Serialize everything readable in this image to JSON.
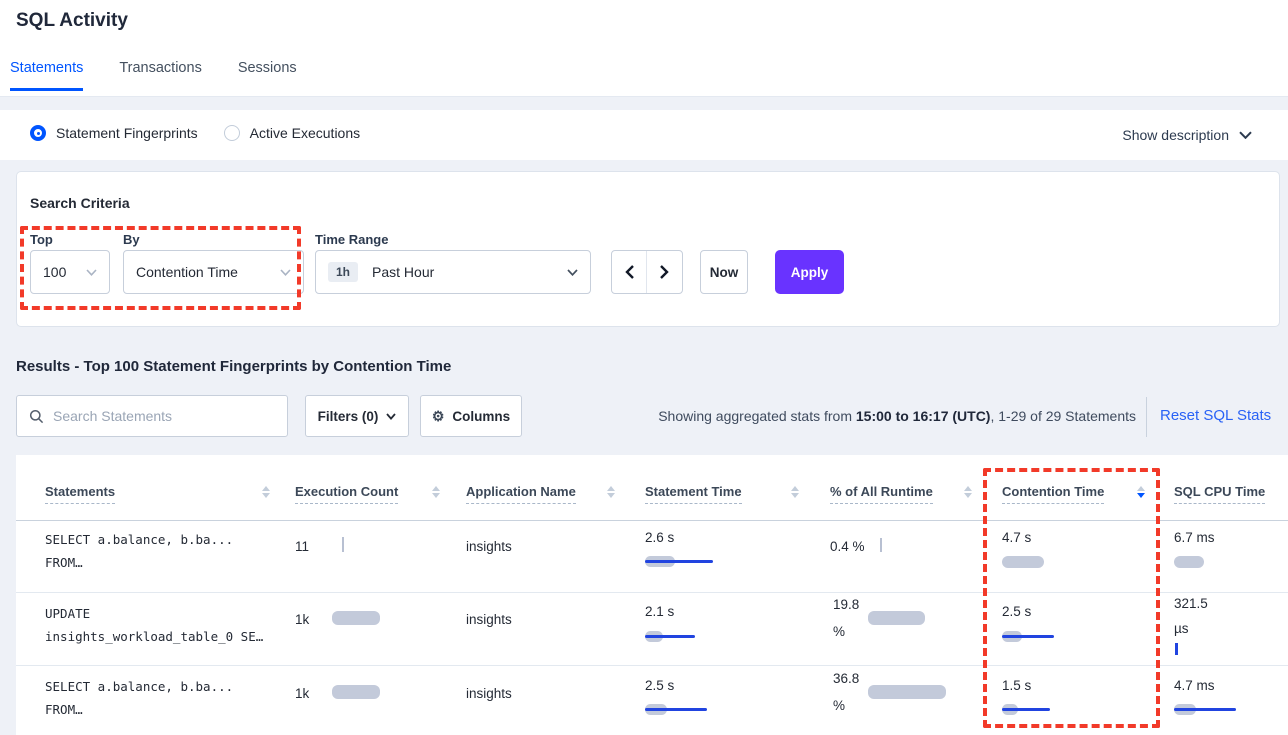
{
  "page": {
    "title": "SQL Activity"
  },
  "tabs": [
    {
      "label": "Statements",
      "active": true
    },
    {
      "label": "Transactions",
      "active": false
    },
    {
      "label": "Sessions",
      "active": false
    }
  ],
  "view_toggle": {
    "options": [
      {
        "label": "Statement Fingerprints",
        "selected": true
      },
      {
        "label": "Active Executions",
        "selected": false
      }
    ],
    "show_description": "Show description"
  },
  "search_criteria": {
    "heading": "Search Criteria",
    "top_label": "Top",
    "top_value": "100",
    "by_label": "By",
    "by_value": "Contention Time",
    "time_range_label": "Time Range",
    "time_range_badge": "1h",
    "time_range_value": "Past Hour",
    "now_label": "Now",
    "apply_label": "Apply"
  },
  "results": {
    "heading": "Results - Top 100 Statement Fingerprints by Contention Time",
    "search_placeholder": "Search Statements",
    "filters_label": "Filters (0)",
    "columns_label": "Columns",
    "stats_prefix": "Showing aggregated stats from ",
    "stats_bold": "15:00 to 16:17 (UTC)",
    "stats_suffix": ", 1-29 of 29 Statements",
    "reset_label": "Reset SQL Stats"
  },
  "table": {
    "columns": [
      "Statements",
      "Execution Count",
      "Application Name",
      "Statement Time",
      "% of All Runtime",
      "Contention Time",
      "SQL CPU Time"
    ],
    "sorted_column": "Contention Time",
    "sort_direction": "desc",
    "rows": [
      {
        "statement_line1": "SELECT a.balance, b.ba...",
        "statement_line2": "FROM…",
        "execution_count": "11",
        "application_name": "insights",
        "statement_time": "2.6 s",
        "pct_runtime": "0.4 %",
        "contention_time": "4.7 s",
        "sql_cpu_time": "6.7 ms",
        "bars": {
          "execution": {
            "tick": true,
            "w": 2,
            "h": 15
          },
          "statement_time": {
            "track": 30,
            "h": 11,
            "line": 68
          },
          "pct_runtime": {
            "tick": true,
            "w": 2,
            "h": 14
          },
          "contention": {
            "track": 42,
            "h": 12,
            "line": 0
          },
          "sql_cpu": {
            "track": 30,
            "h": 12,
            "line": 0
          }
        }
      },
      {
        "statement_line1": "UPDATE",
        "statement_line2": "insights_workload_table_0 SE…",
        "execution_count": "1k",
        "application_name": "insights",
        "statement_time": "2.1 s",
        "pct_runtime_line1": "19.8",
        "pct_runtime_line2": "%",
        "contention_time": "2.5 s",
        "sql_cpu_line1": "321.5",
        "sql_cpu_line2": "µs",
        "bars": {
          "execution": {
            "track": 48,
            "h": 14,
            "line": 0
          },
          "statement_time": {
            "track": 18,
            "h": 11,
            "line": 50
          },
          "pct_runtime": {
            "track": 57,
            "h": 14,
            "line": 0
          },
          "contention": {
            "track": 20,
            "h": 11,
            "line": 52
          },
          "sql_cpu": {
            "tick": true,
            "w": 3,
            "h": 12,
            "blue": true
          }
        }
      },
      {
        "statement_line1": "SELECT a.balance, b.ba...",
        "statement_line2": "FROM…",
        "execution_count": "1k",
        "application_name": "insights",
        "statement_time": "2.5 s",
        "pct_runtime_line1": "36.8",
        "pct_runtime_line2": "%",
        "contention_time": "1.5 s",
        "sql_cpu_time": "4.7 ms",
        "bars": {
          "execution": {
            "track": 48,
            "h": 14,
            "line": 0
          },
          "statement_time": {
            "track": 22,
            "h": 11,
            "line": 62
          },
          "pct_runtime": {
            "track": 78,
            "h": 14,
            "line": 0
          },
          "contention": {
            "track": 16,
            "h": 11,
            "line": 48
          },
          "sql_cpu": {
            "track": 22,
            "h": 11,
            "line": 62
          }
        }
      }
    ]
  },
  "colors": {
    "accent_blue": "#0055ff",
    "link_blue": "#2962f6",
    "apply_purple": "#6933ff",
    "bar_gray": "#c3cada",
    "bar_blue": "#2144e0",
    "annotation_red": "#f23a29"
  }
}
